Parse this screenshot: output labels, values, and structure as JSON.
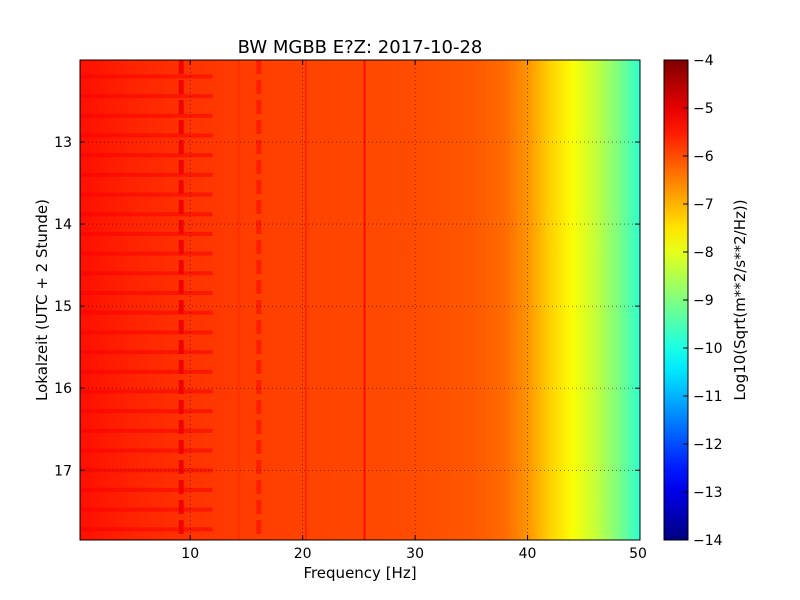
{
  "chart_data": {
    "type": "heatmap",
    "title": "BW MGBB E?Z: 2017-10-28",
    "xlabel": "Frequency [Hz]",
    "ylabel": "Lokalzeit (UTC + 2 Stunde)",
    "xlim": [
      0.2,
      50
    ],
    "ylim": [
      17.85,
      12.0
    ],
    "y_inverted": true,
    "xticks": [
      {
        "value": 10,
        "label": "10"
      },
      {
        "value": 20,
        "label": "20"
      },
      {
        "value": 30,
        "label": "30"
      },
      {
        "value": 40,
        "label": "40"
      },
      {
        "value": 50,
        "label": "50"
      }
    ],
    "yticks": [
      {
        "value": 13,
        "label": "13"
      },
      {
        "value": 14,
        "label": "14"
      },
      {
        "value": 15,
        "label": "15"
      },
      {
        "value": 16,
        "label": "16"
      },
      {
        "value": 17,
        "label": "17"
      }
    ],
    "grid": true,
    "colormap": "jet",
    "colorbar": {
      "label": "Log10(Sqrt(m**2/s**2/Hz))",
      "min": -14,
      "max": -4,
      "ticks": [
        {
          "value": -4,
          "label": "−4"
        },
        {
          "value": -5,
          "label": "−5"
        },
        {
          "value": -6,
          "label": "−6"
        },
        {
          "value": -7,
          "label": "−7"
        },
        {
          "value": -8,
          "label": "−8"
        },
        {
          "value": -9,
          "label": "−9"
        },
        {
          "value": -10,
          "label": "−10"
        },
        {
          "value": -11,
          "label": "−11"
        },
        {
          "value": -12,
          "label": "−12"
        },
        {
          "value": -13,
          "label": "−13"
        },
        {
          "value": -14,
          "label": "−14"
        }
      ]
    },
    "frequency_profile": {
      "frequency_hz": [
        0.2,
        5,
        10,
        15,
        20,
        25,
        30,
        35,
        38,
        40,
        42,
        44,
        46,
        48,
        50
      ],
      "log10_psd": [
        -5.4,
        -5.6,
        -5.75,
        -5.85,
        -5.9,
        -5.95,
        -6.0,
        -6.1,
        -6.3,
        -6.7,
        -7.3,
        -7.8,
        -8.3,
        -9.0,
        -9.8
      ]
    },
    "spectral_lines": [
      {
        "frequency_hz": 9.2,
        "log10_psd": -5.1,
        "type": "intermittent"
      },
      {
        "frequency_hz": 14.3,
        "log10_psd": -5.7,
        "type": "continuous"
      },
      {
        "frequency_hz": 16.1,
        "log10_psd": -5.5,
        "type": "intermittent"
      },
      {
        "frequency_hz": 20.3,
        "log10_psd": -5.6,
        "type": "continuous"
      },
      {
        "frequency_hz": 25.5,
        "log10_psd": -5.3,
        "type": "continuous"
      }
    ],
    "periodic_bands": {
      "start_time_h": 12.2,
      "interval_h": 0.24,
      "frequency_range_hz": [
        0.2,
        12
      ],
      "log10_psd": -5.2
    }
  }
}
